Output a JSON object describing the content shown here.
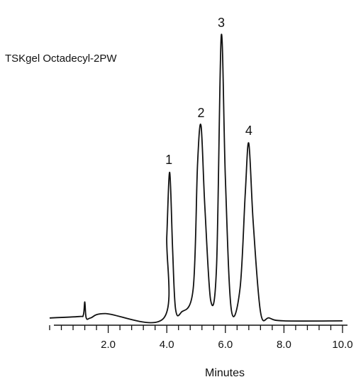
{
  "chart_data": {
    "type": "line",
    "title": "TSKgel Octadecyl-2PW",
    "xlabel": "Minutes",
    "ylabel": "",
    "xlim": [
      0,
      10
    ],
    "x_tick_labels": [
      "2.0",
      "4.0",
      "6.0",
      "8.0",
      "10.0"
    ],
    "x_major_ticks": [
      2,
      4,
      6,
      8,
      10
    ],
    "x_minor_tick_step": 0.4,
    "y_axis_shown": false,
    "grid": false,
    "line_color": "#111111",
    "series": [
      {
        "x": [
          0.0,
          1.0,
          1.15,
          1.2,
          1.25,
          1.4,
          1.9,
          3.9,
          4.0,
          4.1,
          4.2,
          4.3,
          4.5,
          4.9,
          5.05,
          5.17,
          5.3,
          5.5,
          5.7,
          5.86,
          6.0,
          6.2,
          6.5,
          6.68,
          6.8,
          6.95,
          7.2,
          7.5,
          8.0,
          10.0
        ],
        "y": [
          0.02,
          0.025,
          0.03,
          0.075,
          0.02,
          0.02,
          0.035,
          0.02,
          0.3,
          0.52,
          0.25,
          0.05,
          0.04,
          0.12,
          0.55,
          0.68,
          0.4,
          0.08,
          0.2,
          0.99,
          0.5,
          0.05,
          0.12,
          0.45,
          0.62,
          0.35,
          0.04,
          0.02,
          0.01,
          0.01
        ]
      }
    ],
    "peak_labels": [
      {
        "text": "1",
        "x": 4.07,
        "y": 0.52
      },
      {
        "text": "2",
        "x": 5.17,
        "y": 0.68
      },
      {
        "text": "3",
        "x": 5.86,
        "y": 0.99
      },
      {
        "text": "4",
        "x": 6.8,
        "y": 0.62
      }
    ]
  }
}
